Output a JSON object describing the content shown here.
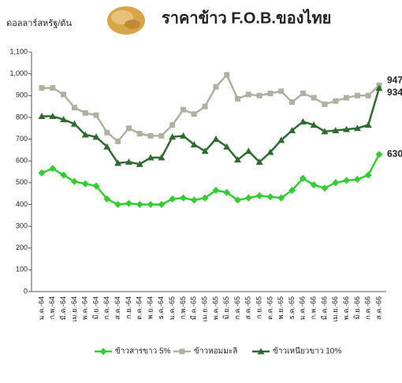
{
  "chart_data": {
    "type": "line",
    "title": "ราคาข้าว F.O.B.ของไทย",
    "y_axis_label": "ดอลลาร์สหรัฐ/ตัน",
    "categories": [
      "ม.ค.-64",
      "ก.พ.-64",
      "มี.ค.-64",
      "เม.ย.-64",
      "พ.ค.-64",
      "มิ.ย.-64",
      "ก.ค.-64",
      "ส.ค.-64",
      "ก.ย.-64",
      "ต.ค.-64",
      "พ.ย.-64",
      "ธ.ค.-64",
      "ม.ค.-65",
      "ก.พ.-65",
      "มี.ค.-65",
      "เม.ย.-65",
      "พ.ค.-65",
      "มิ.ย.-65",
      "ก.ค.-65",
      "ส.ค.-65",
      "ก.ย.-65",
      "ต.ค.-65",
      "พ.ย.-65",
      "ธ.ค.-65",
      "ม.ค.-66",
      "ก.พ.-66",
      "มี.ค.-66",
      "เม.ย.-66",
      "พ.ค.-66",
      "มิ.ย.-66",
      "ก.ค.-66",
      "ส.ค.-66"
    ],
    "series": [
      {
        "name": "ข้าวสารขาว 5%",
        "color": "#33cc33",
        "marker": "diamond",
        "values": [
          545,
          565,
          535,
          505,
          495,
          485,
          425,
          400,
          405,
          400,
          400,
          400,
          425,
          430,
          420,
          430,
          465,
          455,
          420,
          430,
          440,
          435,
          430,
          465,
          520,
          490,
          475,
          500,
          510,
          515,
          535,
          630
        ]
      },
      {
        "name": "ข้าวหอมมะลิ",
        "color": "#b0b0a0",
        "marker": "square",
        "values": [
          935,
          935,
          905,
          845,
          820,
          810,
          730,
          690,
          750,
          725,
          715,
          715,
          765,
          835,
          815,
          850,
          940,
          995,
          885,
          905,
          900,
          910,
          920,
          870,
          910,
          890,
          860,
          875,
          890,
          900,
          900,
          947
        ]
      },
      {
        "name": "ข้าวเหนียวขาว 10%",
        "color": "#2e6b2e",
        "marker": "triangle",
        "values": [
          805,
          805,
          790,
          770,
          720,
          710,
          665,
          590,
          595,
          585,
          615,
          615,
          710,
          715,
          675,
          645,
          700,
          665,
          605,
          645,
          595,
          640,
          695,
          740,
          780,
          765,
          735,
          740,
          745,
          750,
          765,
          934
        ]
      }
    ],
    "ylim": [
      0,
      1100
    ],
    "yticks": [
      0,
      100,
      200,
      300,
      400,
      500,
      600,
      700,
      800,
      900,
      {
        "value": 1000,
        "label": "1,000"
      },
      {
        "value": 1100,
        "label": "1,100"
      }
    ],
    "grid": false
  }
}
